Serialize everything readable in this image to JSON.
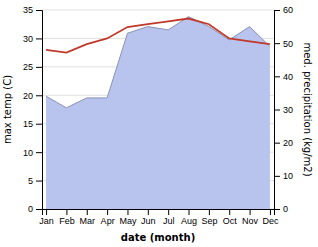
{
  "chart_data": {
    "type": "line",
    "xlabel": "date (month)",
    "ylabel": "max temp (C)",
    "y2label": "med. precipitation (kg/m2)",
    "categories": [
      "Jan",
      "Feb",
      "Mar",
      "Apr",
      "May",
      "Jun",
      "Jul",
      "Aug",
      "Sep",
      "Oct",
      "Nov",
      "Dec"
    ],
    "series": [
      {
        "type": "line",
        "color": "#c0392b",
        "values": [
          28.0,
          27.5,
          29.0,
          30.0,
          32.0,
          32.5,
          33.0,
          33.5,
          32.5,
          30.0,
          29.5,
          29.0
        ]
      },
      {
        "type": "area",
        "axis": "y2",
        "color": "#b8c4ee",
        "values": [
          34.0,
          30.5,
          33.5,
          33.5,
          53.0,
          55.0,
          54.0,
          58.0,
          55.0,
          51.0,
          55.0,
          49.0
        ]
      }
    ],
    "ylim": [
      0,
      35
    ],
    "yticks": [
      0,
      5,
      10,
      15,
      20,
      25,
      30,
      35
    ],
    "y2lim": [
      0,
      60
    ],
    "y2ticks": [
      0,
      10,
      20,
      30,
      40,
      50,
      60
    ],
    "grid": true
  }
}
